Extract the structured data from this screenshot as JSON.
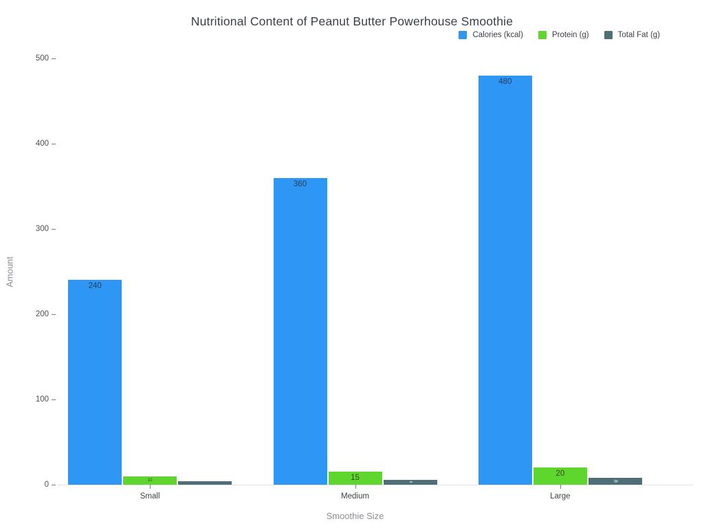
{
  "chart": {
    "title": "Nutritional Content of Peanut Butter Powerhouse Smoothie",
    "xlabel": "Smoothie Size",
    "ylabel": "Amount"
  },
  "chart_data": {
    "type": "bar",
    "title": "Nutritional Content of Peanut Butter Powerhouse Smoothie",
    "xlabel": "Smoothie Size",
    "ylabel": "Amount",
    "categories": [
      "Small",
      "Medium",
      "Large"
    ],
    "series": [
      {
        "name": "Calories (kcal)",
        "color": "#2E96F5",
        "label_color": "#2c3e57",
        "values": [
          240,
          360,
          480
        ]
      },
      {
        "name": "Protein (g)",
        "color": "#5FD62E",
        "label_color": "#2f4a1a",
        "values": [
          10,
          15,
          20
        ]
      },
      {
        "name": "Total Fat (g)",
        "color": "#4E6E78",
        "label_color": "#ffffff",
        "values": [
          4,
          6,
          8
        ]
      }
    ],
    "ylim": [
      0,
      500
    ],
    "yticks": [
      0,
      100,
      200,
      300,
      400,
      500
    ],
    "grid": false,
    "legend_position": "top-right",
    "bar_value_labels_visible": [
      "240",
      "360",
      "480",
      "10",
      "15",
      "20",
      "6",
      "8"
    ]
  }
}
